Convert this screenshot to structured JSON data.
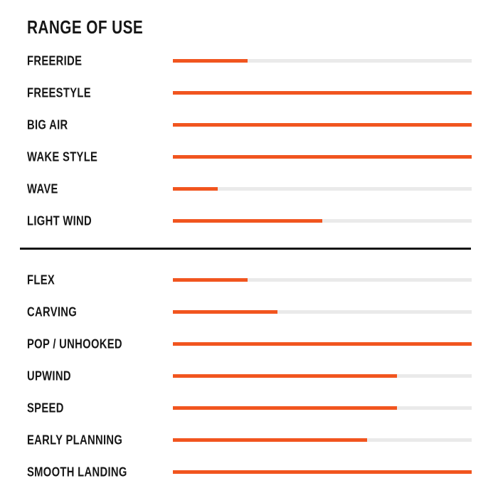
{
  "title": "RANGE OF USE",
  "colors": {
    "background": "#FFFFFF",
    "accent": "#F1551F",
    "track": "#EAEAEA",
    "text": "#161616",
    "divider": "#131313"
  },
  "chart_data": {
    "type": "bar",
    "orientation": "horizontal",
    "title": "RANGE OF USE",
    "xlabel": "",
    "ylabel": "",
    "scale": [
      0,
      100
    ],
    "value_unit": "percent of full bar",
    "grid": false,
    "legend": "none",
    "sections": [
      {
        "name": "range-of-use",
        "categories": [
          "FREERIDE",
          "FREESTYLE",
          "BIG AIR",
          "WAKE STYLE",
          "WAVE",
          "LIGHT WIND"
        ],
        "values": [
          25,
          100,
          100,
          100,
          15,
          50
        ]
      },
      {
        "name": "performance",
        "categories": [
          "FLEX",
          "CARVING",
          "POP / UNHOOKED",
          "UPWIND",
          "SPEED",
          "EARLY PLANNING",
          "SMOOTH LANDING"
        ],
        "values": [
          25,
          35,
          100,
          75,
          75,
          65,
          100
        ]
      }
    ]
  },
  "layout_rows": {
    "section1_tops": [
      63,
      108,
      153,
      198,
      243,
      288
    ],
    "section2_tops": [
      371,
      416,
      461,
      506,
      551,
      596,
      641
    ]
  }
}
